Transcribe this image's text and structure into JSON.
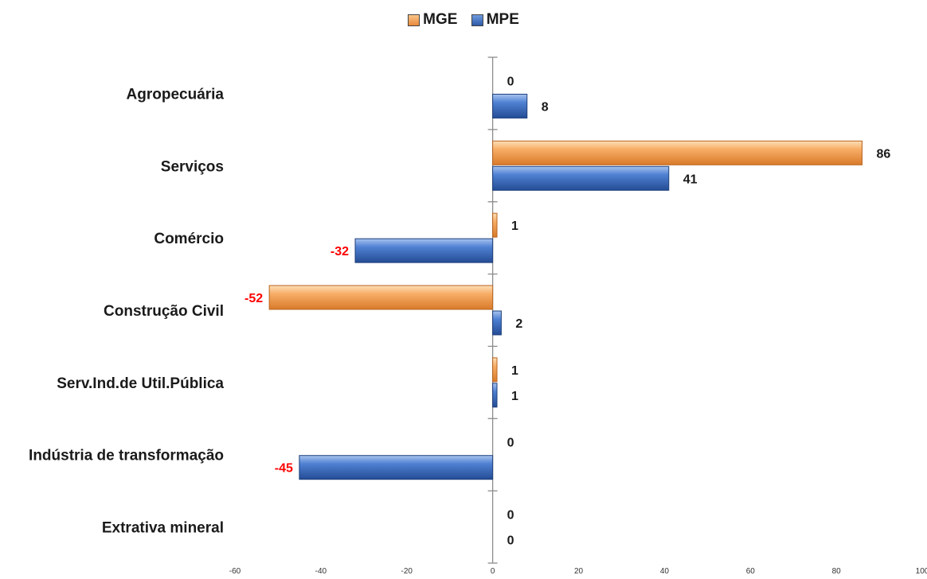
{
  "chart_data": {
    "type": "bar",
    "orientation": "horizontal",
    "categories": [
      "Agropecuária",
      "Serviços",
      "Comércio",
      "Construção Civil",
      "Serv.Ind.de Util.Pública",
      "Indústria de transformação",
      "Extrativa mineral"
    ],
    "series": [
      {
        "name": "MGE",
        "color": "#f4a15a",
        "values": [
          0,
          86,
          1,
          -52,
          1,
          0,
          0
        ]
      },
      {
        "name": "MPE",
        "color": "#3f6fc4",
        "values": [
          8,
          41,
          -32,
          2,
          1,
          -45,
          0
        ]
      }
    ],
    "xlim": [
      -60,
      100
    ],
    "xticks": [
      -60,
      -40,
      -20,
      0,
      20,
      40,
      60,
      80,
      100
    ],
    "negative_label_color": "#ff0000",
    "legend_position": "top-center",
    "grid": false
  }
}
